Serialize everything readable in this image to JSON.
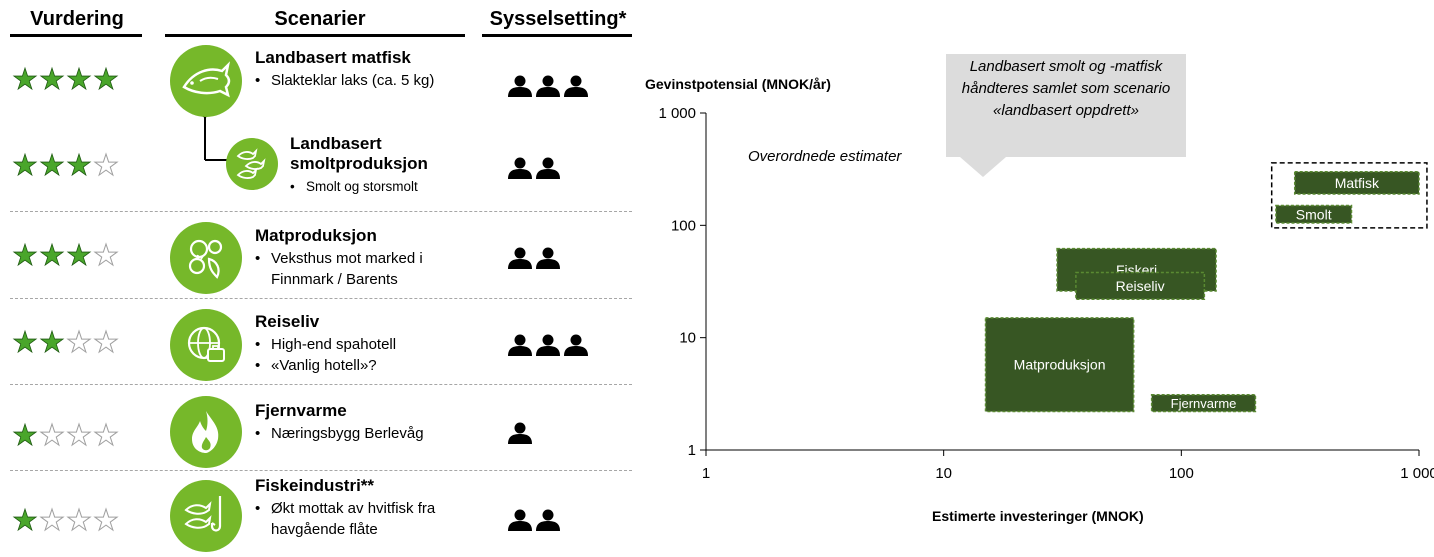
{
  "headers": {
    "rating": "Vurdering",
    "scenarios": "Scenarier",
    "employment": "Sysselsetting*"
  },
  "scenarios": [
    {
      "title": "Landbasert matfisk",
      "bullets": [
        "Slakteklar laks (ca. 5 kg)"
      ],
      "stars": 4,
      "people": 3,
      "icon": "salmon-icon"
    },
    {
      "title": "Landbasert smoltproduksjon",
      "title_lines": [
        "Landbasert",
        "smoltproduksjon"
      ],
      "bullets": [
        "Smolt og storsmolt"
      ],
      "stars": 3,
      "people": 2,
      "icon": "smolt-fish-icon"
    },
    {
      "title": "Matproduksjon",
      "bullets": [
        "Veksthus mot marked i",
        "Finnmark / Barents"
      ],
      "stars": 3,
      "people": 2,
      "icon": "vegetables-icon"
    },
    {
      "title": "Reiseliv",
      "bullets": [
        "High-end spahotell",
        "«Vanlig hotell»?"
      ],
      "stars": 2,
      "people": 3,
      "icon": "globe-suitcase-icon"
    },
    {
      "title": "Fjernvarme",
      "bullets": [
        "Næringsbygg Berlevåg"
      ],
      "stars": 1,
      "people": 1,
      "icon": "flame-icon"
    },
    {
      "title": "Fiskeindustri**",
      "bullets": [
        "Økt mottak av hvitfisk fra",
        "havgående flåte"
      ],
      "stars": 1,
      "people": 2,
      "icon": "fish-hook-icon"
    }
  ],
  "colors": {
    "star": "#4aa62b",
    "circle": "#76b82a",
    "box_fill": "#375623",
    "box_border": "#5a8a32"
  },
  "chart_data": {
    "type": "scatter",
    "title": "",
    "xlabel": "Estimerte investeringer (MNOK)",
    "ylabel": "Gevinstpotensial (MNOK/år)",
    "x_scale": "log",
    "y_scale": "log",
    "xlim": [
      1,
      1000
    ],
    "ylim": [
      1,
      1000
    ],
    "x_ticks": [
      1,
      10,
      100,
      1000
    ],
    "x_tick_labels": [
      "1",
      "10",
      "100",
      "1 000"
    ],
    "y_ticks": [
      1,
      10,
      100,
      1000
    ],
    "y_tick_labels": [
      "1",
      "10",
      "100",
      "1 000"
    ],
    "annotation": "Overordnede estimater",
    "callout": [
      "Landbasert smolt og -matfisk",
      "håndteres samlet som scenario",
      "«landbasert oppdrett»"
    ],
    "series": [
      {
        "name": "Matfisk",
        "x": [
          300,
          1000
        ],
        "y": [
          190,
          300
        ]
      },
      {
        "name": "Smolt",
        "x": [
          250,
          520
        ],
        "y": [
          105,
          150
        ]
      },
      {
        "name": "Fiskeri",
        "x": [
          30,
          140
        ],
        "y": [
          26,
          62
        ]
      },
      {
        "name": "Reiseliv",
        "x": [
          36,
          125
        ],
        "y": [
          22,
          38
        ]
      },
      {
        "name": "Matproduksjon",
        "x": [
          15,
          63
        ],
        "y": [
          2.2,
          15
        ]
      },
      {
        "name": "Fjernvarme",
        "x": [
          75,
          205
        ],
        "y": [
          2.2,
          3.1
        ]
      }
    ],
    "group_box": {
      "x": [
        240,
        1080
      ],
      "y": [
        95,
        360
      ]
    }
  }
}
